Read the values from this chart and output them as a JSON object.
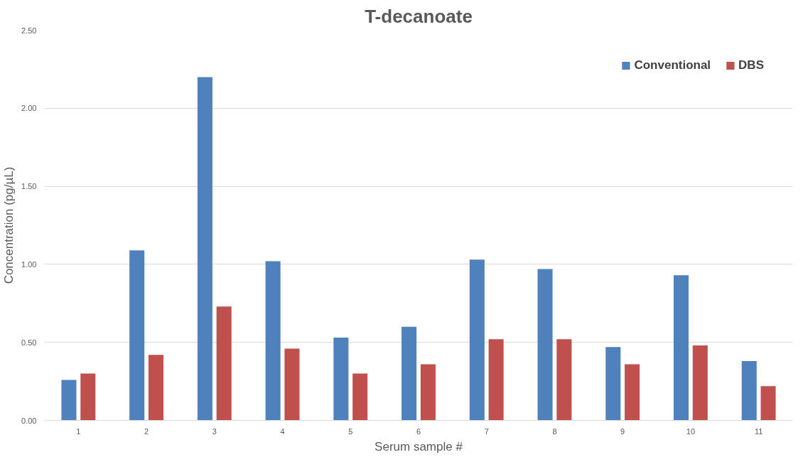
{
  "chart_data": {
    "type": "bar",
    "title": "T-decanoate",
    "xlabel": "Serum sample #",
    "ylabel": "Concentration (pg/µL)",
    "categories": [
      "1",
      "2",
      "3",
      "4",
      "5",
      "6",
      "7",
      "8",
      "9",
      "10",
      "11"
    ],
    "series": [
      {
        "name": "Conventional",
        "color": "#4f81bd",
        "values": [
          0.26,
          1.09,
          2.2,
          1.02,
          0.53,
          0.6,
          1.03,
          0.97,
          0.47,
          0.93,
          0.38
        ]
      },
      {
        "name": "DBS",
        "color": "#c0504d",
        "values": [
          0.3,
          0.42,
          0.73,
          0.46,
          0.3,
          0.36,
          0.52,
          0.52,
          0.36,
          0.48,
          0.22
        ]
      }
    ],
    "ylim": [
      0,
      2.5
    ],
    "yticks": [
      {
        "value": 0,
        "label": "0.00"
      },
      {
        "value": 0.5,
        "label": "0.50"
      },
      {
        "value": 1,
        "label": "1.00"
      },
      {
        "value": 1.5,
        "label": "1.50"
      },
      {
        "value": 2,
        "label": "2.00"
      },
      {
        "value": 2.5,
        "label": "2.50"
      }
    ],
    "grid": "y",
    "legend": "top right"
  }
}
